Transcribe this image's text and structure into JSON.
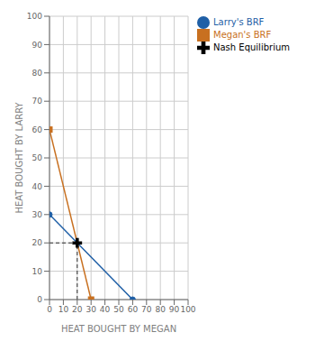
{
  "chart_data": {
    "type": "line",
    "title": "",
    "xlabel": "HEAT BOUGHT BY MEGAN",
    "ylabel": "HEAT BOUGHT BY LARRY",
    "xlim": [
      0,
      100
    ],
    "ylim": [
      0,
      100
    ],
    "xticks": [
      0,
      10,
      20,
      30,
      40,
      50,
      60,
      70,
      80,
      90,
      100
    ],
    "yticks": [
      0,
      10,
      20,
      30,
      40,
      50,
      60,
      70,
      80,
      90,
      100
    ],
    "grid": true,
    "legend": "right",
    "series": [
      {
        "name": "Larry's BRF",
        "color": "#1f5fa6",
        "marker": "circle",
        "x": [
          0,
          60
        ],
        "values": [
          30,
          0
        ]
      },
      {
        "name": "Megan's BRF",
        "color": "#c87020",
        "marker": "square",
        "x": [
          0,
          30
        ],
        "values": [
          60,
          0
        ]
      },
      {
        "name": "Nash Equilibrium",
        "type": "scatter",
        "color": "#000000",
        "marker": "cross",
        "x": [
          20
        ],
        "values": [
          20
        ]
      }
    ]
  }
}
